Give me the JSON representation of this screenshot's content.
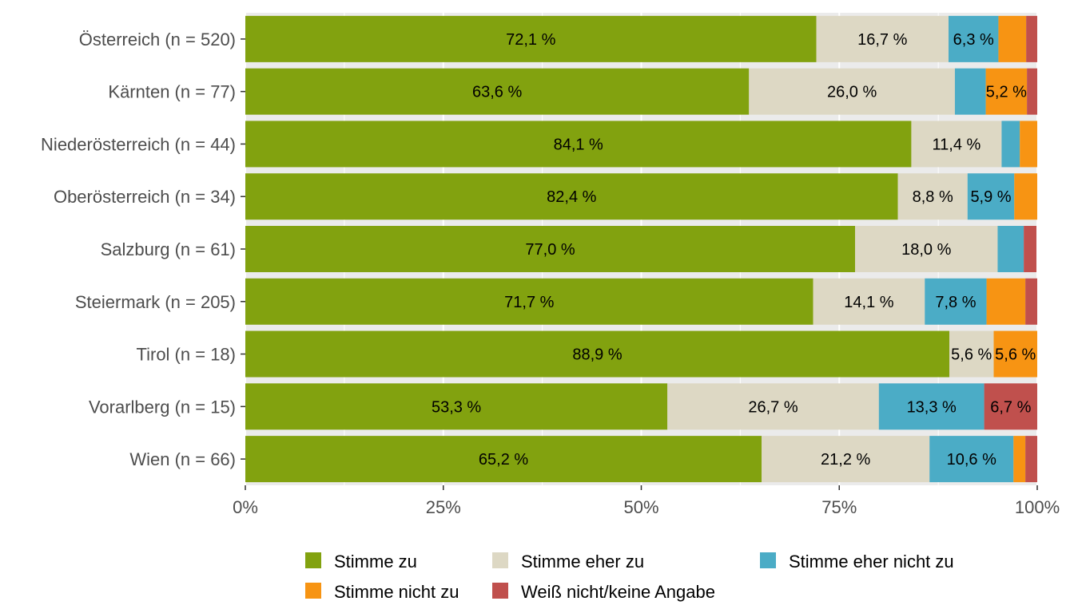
{
  "chart_data": {
    "type": "bar",
    "orientation": "horizontal",
    "stacked": true,
    "title": "",
    "xlabel": "",
    "ylabel": "",
    "xlim": [
      0,
      100
    ],
    "x_ticks": [
      "0%",
      "25%",
      "50%",
      "75%",
      "100%"
    ],
    "legend_position": "bottom",
    "grid": true,
    "categories": [
      "Österreich (n = 520)",
      "Kärnten (n = 77)",
      "Niederösterreich (n = 44)",
      "Oberösterreich (n = 34)",
      "Salzburg (n = 61)",
      "Steiermark (n = 205)",
      "Tirol (n = 18)",
      "Vorarlberg (n = 15)",
      "Wien (n = 66)"
    ],
    "series": [
      {
        "name": "Stimme zu",
        "color": "#82a20f",
        "values": [
          72.1,
          63.6,
          84.1,
          82.4,
          77.0,
          71.7,
          88.9,
          53.3,
          65.2
        ],
        "labels": [
          "72,1 %",
          "63,6 %",
          "84,1 %",
          "82,4 %",
          "77,0 %",
          "71,7 %",
          "88,9 %",
          "53,3 %",
          "65,2 %"
        ]
      },
      {
        "name": "Stimme eher zu",
        "color": "#ddd8c4",
        "values": [
          16.7,
          26.0,
          11.4,
          8.8,
          18.0,
          14.1,
          5.6,
          26.7,
          21.2
        ],
        "labels": [
          "16,7 %",
          "26,0 %",
          "11,4 %",
          "8,8 %",
          "18,0 %",
          "14,1 %",
          "5,6 %",
          "26,7 %",
          "21,2 %"
        ]
      },
      {
        "name": "Stimme eher nicht zu",
        "color": "#4bacc6",
        "values": [
          6.3,
          3.9,
          2.3,
          5.9,
          3.3,
          7.8,
          0.0,
          13.3,
          10.6
        ],
        "labels": [
          "6,3 %",
          "",
          "",
          "5,9 %",
          "",
          "7,8 %",
          "",
          "13,3 %",
          "10,6 %"
        ]
      },
      {
        "name": "Stimme nicht zu",
        "color": "#f79413",
        "values": [
          3.5,
          5.2,
          2.3,
          2.9,
          0.0,
          4.9,
          5.6,
          0.0,
          1.5
        ],
        "labels": [
          "",
          "5,2 %",
          "",
          "",
          "",
          "",
          "5,6 %",
          "",
          ""
        ]
      },
      {
        "name": "Weiß nicht/keine Angabe",
        "color": "#c0504d",
        "values": [
          1.4,
          1.3,
          0.0,
          0.0,
          1.6,
          1.5,
          0.0,
          6.7,
          1.5
        ],
        "labels": [
          "",
          "",
          "",
          "",
          "",
          "",
          "",
          "6,7 %",
          ""
        ]
      }
    ]
  }
}
